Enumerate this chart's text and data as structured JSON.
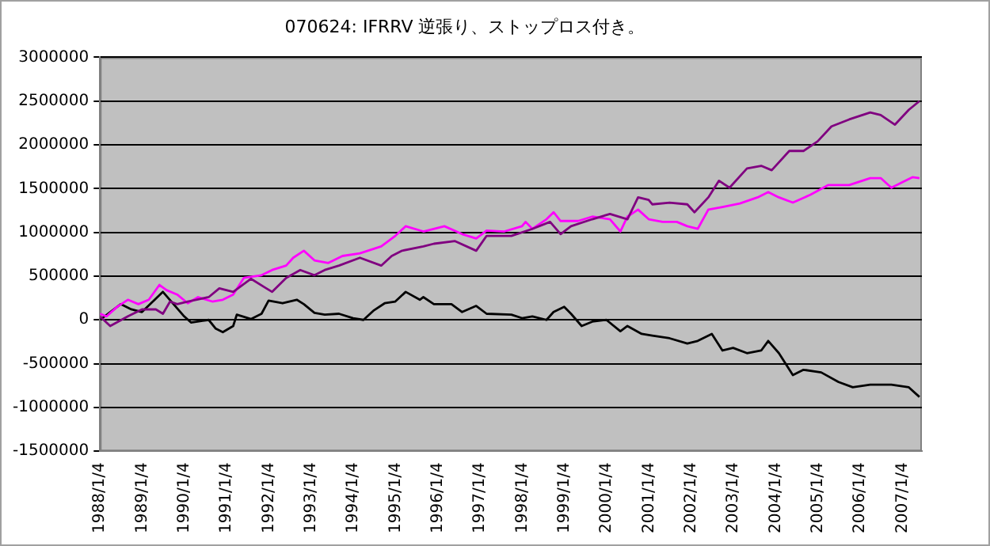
{
  "chart_data": {
    "type": "line",
    "title": "070624: IFRRV 逆張り、ストップロス付き。",
    "xlim": [
      "1988-01-04",
      "2007-06-22"
    ],
    "xticks": [
      {
        "value": "1988-01-04",
        "label": "1988/1/4"
      },
      {
        "value": "1989-01-04",
        "label": "1989/1/4"
      },
      {
        "value": "1990-01-04",
        "label": "1990/1/4"
      },
      {
        "value": "1991-01-04",
        "label": "1991/1/4"
      },
      {
        "value": "1992-01-04",
        "label": "1992/1/4"
      },
      {
        "value": "1993-01-04",
        "label": "1993/1/4"
      },
      {
        "value": "1994-01-04",
        "label": "1994/1/4"
      },
      {
        "value": "1995-01-04",
        "label": "1995/1/4"
      },
      {
        "value": "1996-01-04",
        "label": "1996/1/4"
      },
      {
        "value": "1997-01-04",
        "label": "1997/1/4"
      },
      {
        "value": "1998-01-04",
        "label": "1998/1/4"
      },
      {
        "value": "1999-01-04",
        "label": "1999/1/4"
      },
      {
        "value": "2000-01-04",
        "label": "2000/1/4"
      },
      {
        "value": "2001-01-04",
        "label": "2001/1/4"
      },
      {
        "value": "2002-01-04",
        "label": "2002/1/4"
      },
      {
        "value": "2003-01-04",
        "label": "2003/1/4"
      },
      {
        "value": "2004-01-04",
        "label": "2004/1/4"
      },
      {
        "value": "2005-01-04",
        "label": "2005/1/4"
      },
      {
        "value": "2006-01-04",
        "label": "2006/1/4"
      },
      {
        "value": "2007-01-04",
        "label": "2007/1/4"
      }
    ],
    "ylim": [
      -1500000,
      3000000
    ],
    "yticks": [
      -1500000,
      -1000000,
      -500000,
      0,
      500000,
      1000000,
      1500000,
      2000000,
      2500000,
      3000000
    ],
    "grid": "y",
    "series": [
      {
        "color": "#800080",
        "x": [
          "1988-01-04",
          "1988-04",
          "1988-09",
          "1989-01",
          "1989-05",
          "1989-07",
          "1989-09",
          "1989-11",
          "1990-02",
          "1990-08",
          "1990-11",
          "1991-03",
          "1991-08",
          "1991-12",
          "1992-02",
          "1992-06",
          "1992-10",
          "1993-02",
          "1993-05",
          "1993-09",
          "1994-03",
          "1994-09",
          "1994-12",
          "1995-03",
          "1995-09",
          "1995-12",
          "1996-06",
          "1996-12",
          "1997-03",
          "1997-10",
          "1998-04",
          "1998-09",
          "1998-12",
          "1999-03",
          "1999-09",
          "2000-02",
          "2000-07",
          "2000-10",
          "2001-01",
          "2001-02",
          "2001-07",
          "2001-12",
          "2002-02",
          "2002-06",
          "2002-09",
          "2002-12",
          "2003-05",
          "2003-09",
          "2003-12",
          "2004-05",
          "2004-09",
          "2005-01",
          "2005-05",
          "2005-10",
          "2006-04",
          "2006-07",
          "2006-11",
          "2007-03",
          "2007-06"
        ],
        "values": [
          40000,
          -70000,
          40000,
          120000,
          120000,
          70000,
          210000,
          180000,
          210000,
          260000,
          360000,
          320000,
          470000,
          370000,
          320000,
          480000,
          570000,
          510000,
          570000,
          620000,
          710000,
          620000,
          730000,
          790000,
          840000,
          870000,
          900000,
          790000,
          960000,
          960000,
          1040000,
          1120000,
          980000,
          1070000,
          1150000,
          1210000,
          1150000,
          1400000,
          1370000,
          1320000,
          1340000,
          1320000,
          1230000,
          1400000,
          1590000,
          1510000,
          1730000,
          1760000,
          1710000,
          1930000,
          1930000,
          2040000,
          2210000,
          2290000,
          2370000,
          2340000,
          2230000,
          2400000,
          2500000
        ]
      },
      {
        "color": "#ff00ff",
        "x": [
          "1988-01-04",
          "1988-03",
          "1988-06",
          "1988-09",
          "1988-12",
          "1989-03",
          "1989-06",
          "1989-08",
          "1989-11",
          "1990-02",
          "1990-05",
          "1990-09",
          "1990-12",
          "1991-03",
          "1991-06",
          "1991-11",
          "1992-02",
          "1992-06",
          "1992-08",
          "1992-11",
          "1993-02",
          "1993-06",
          "1993-10",
          "1994-03",
          "1994-09",
          "1995-01",
          "1995-04",
          "1995-09",
          "1996-03",
          "1996-08",
          "1996-12",
          "1997-03",
          "1997-08",
          "1998-01",
          "1998-02",
          "1998-04",
          "1998-08",
          "1998-10",
          "1998-12",
          "1999-05",
          "1999-09",
          "2000-02",
          "2000-05",
          "2000-07",
          "2000-10",
          "2001-01",
          "2001-05",
          "2001-09",
          "2001-12",
          "2002-03",
          "2002-06",
          "2002-10",
          "2003-03",
          "2003-08",
          "2003-11",
          "2004-02",
          "2004-06",
          "2004-11",
          "2005-04",
          "2005-10",
          "2006-04",
          "2006-07",
          "2006-10",
          "2007-01",
          "2007-04",
          "2007-06"
        ],
        "values": [
          70000,
          40000,
          150000,
          230000,
          180000,
          230000,
          400000,
          340000,
          290000,
          190000,
          260000,
          210000,
          230000,
          290000,
          480000,
          510000,
          570000,
          620000,
          710000,
          790000,
          680000,
          650000,
          730000,
          760000,
          840000,
          960000,
          1070000,
          1010000,
          1070000,
          980000,
          930000,
          1020000,
          1010000,
          1070000,
          1120000,
          1040000,
          1150000,
          1230000,
          1130000,
          1130000,
          1180000,
          1150000,
          1010000,
          1180000,
          1260000,
          1150000,
          1120000,
          1120000,
          1070000,
          1040000,
          1260000,
          1290000,
          1330000,
          1400000,
          1460000,
          1400000,
          1340000,
          1430000,
          1540000,
          1540000,
          1620000,
          1620000,
          1510000,
          1570000,
          1630000,
          1620000
        ]
      },
      {
        "color": "#000000",
        "x": [
          "1988-01-04",
          "1988-07",
          "1988-10",
          "1989-01",
          "1989-07",
          "1989-10",
          "1990-01",
          "1990-03",
          "1990-08",
          "1990-10",
          "1990-12",
          "1991-03",
          "1991-04",
          "1991-08",
          "1991-11",
          "1992-01",
          "1992-05",
          "1992-09",
          "1992-11",
          "1993-02",
          "1993-05",
          "1993-09",
          "1994-01",
          "1994-04",
          "1994-07",
          "1994-10",
          "1995-01",
          "1995-04",
          "1995-08",
          "1995-09",
          "1995-12",
          "1996-05",
          "1996-08",
          "1996-12",
          "1997-03",
          "1997-10",
          "1998-01",
          "1998-04",
          "1998-08",
          "1998-10",
          "1999-01",
          "1999-03",
          "1999-06",
          "1999-09",
          "2000-01",
          "2000-05",
          "2000-07",
          "2000-11",
          "2001-02",
          "2001-07",
          "2001-12",
          "2002-03",
          "2002-07",
          "2002-10",
          "2003-01",
          "2003-05",
          "2003-09",
          "2003-11",
          "2004-02",
          "2004-06",
          "2004-09",
          "2005-02",
          "2005-07",
          "2005-11",
          "2006-04",
          "2006-10",
          "2007-03",
          "2007-06"
        ],
        "values": [
          0,
          180000,
          120000,
          90000,
          320000,
          180000,
          40000,
          -30000,
          0,
          -100000,
          -140000,
          -70000,
          60000,
          10000,
          70000,
          220000,
          190000,
          230000,
          180000,
          80000,
          60000,
          70000,
          20000,
          0,
          110000,
          190000,
          210000,
          320000,
          230000,
          260000,
          180000,
          180000,
          90000,
          160000,
          70000,
          60000,
          20000,
          40000,
          0,
          90000,
          150000,
          70000,
          -70000,
          -20000,
          0,
          -130000,
          -70000,
          -160000,
          -180000,
          -210000,
          -270000,
          -240000,
          -160000,
          -350000,
          -320000,
          -380000,
          -350000,
          -240000,
          -380000,
          -630000,
          -570000,
          -600000,
          -710000,
          -770000,
          -740000,
          -740000,
          -770000,
          -880000
        ]
      }
    ]
  }
}
